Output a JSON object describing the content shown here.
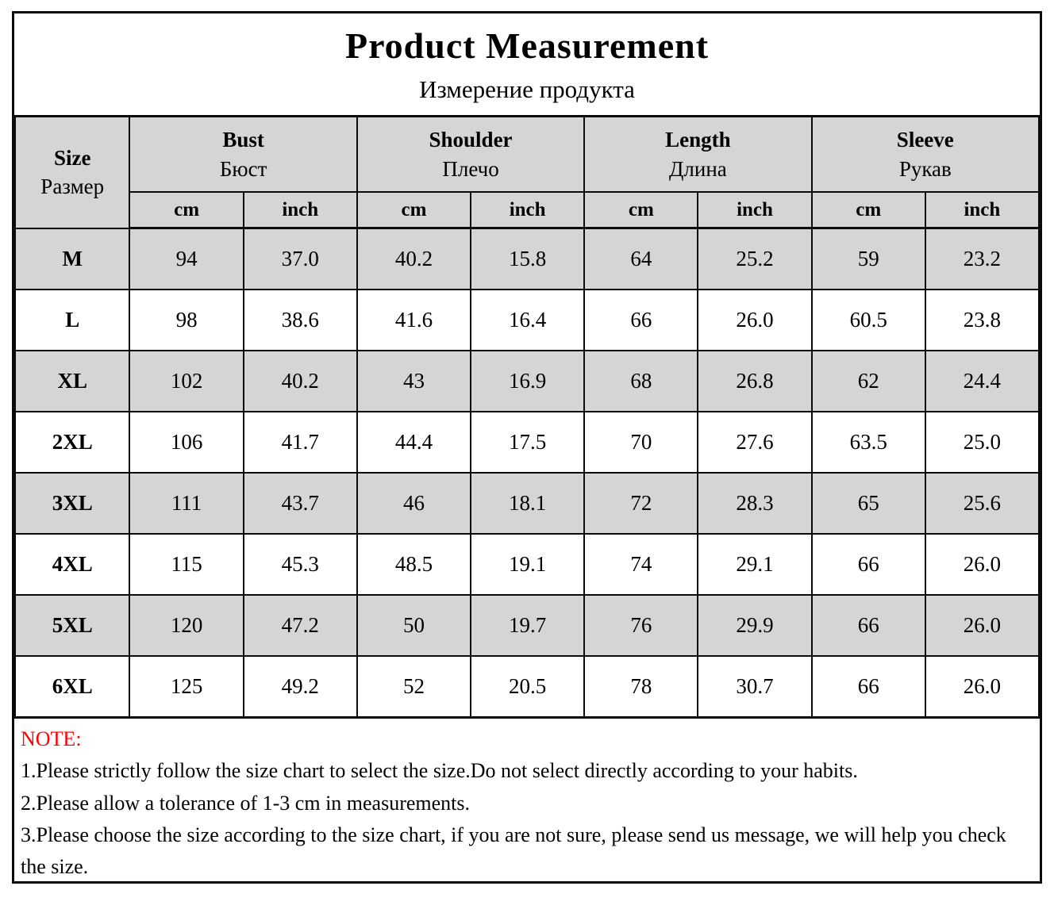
{
  "title": "Product Measurement",
  "subtitle": "Измерение продукта",
  "colors": {
    "row_shade": "#d5d5d5",
    "note_accent": "#fe0000",
    "border": "#0a0a0a"
  },
  "table": {
    "size_header": {
      "en": "Size",
      "ru": "Размер"
    },
    "groups": [
      {
        "en": "Bust",
        "ru": "Бюст"
      },
      {
        "en": "Shoulder",
        "ru": "Плечо"
      },
      {
        "en": "Length",
        "ru": "Длина"
      },
      {
        "en": "Sleeve",
        "ru": "Рукав"
      }
    ],
    "unit_headers": [
      "cm",
      "inch"
    ],
    "rows": [
      {
        "size": "M",
        "values": [
          "94",
          "37.0",
          "40.2",
          "15.8",
          "64",
          "25.2",
          "59",
          "23.2"
        ]
      },
      {
        "size": "L",
        "values": [
          "98",
          "38.6",
          "41.6",
          "16.4",
          "66",
          "26.0",
          "60.5",
          "23.8"
        ]
      },
      {
        "size": "XL",
        "values": [
          "102",
          "40.2",
          "43",
          "16.9",
          "68",
          "26.8",
          "62",
          "24.4"
        ]
      },
      {
        "size": "2XL",
        "values": [
          "106",
          "41.7",
          "44.4",
          "17.5",
          "70",
          "27.6",
          "63.5",
          "25.0"
        ]
      },
      {
        "size": "3XL",
        "values": [
          "111",
          "43.7",
          "46",
          "18.1",
          "72",
          "28.3",
          "65",
          "25.6"
        ]
      },
      {
        "size": "4XL",
        "values": [
          "115",
          "45.3",
          "48.5",
          "19.1",
          "74",
          "29.1",
          "66",
          "26.0"
        ]
      },
      {
        "size": "5XL",
        "values": [
          "120",
          "47.2",
          "50",
          "19.7",
          "76",
          "29.9",
          "66",
          "26.0"
        ]
      },
      {
        "size": "6XL",
        "values": [
          "125",
          "49.2",
          "52",
          "20.5",
          "78",
          "30.7",
          "66",
          "26.0"
        ]
      }
    ]
  },
  "note": {
    "label": "NOTE:",
    "lines": [
      "1.Please strictly follow the size chart to select the size.Do not select directly according to your habits.",
      "2.Please allow a tolerance of 1-3 cm in measurements.",
      "3.Please choose the size according to the size chart, if you are not sure, please send us message, we will help you check the size."
    ]
  }
}
